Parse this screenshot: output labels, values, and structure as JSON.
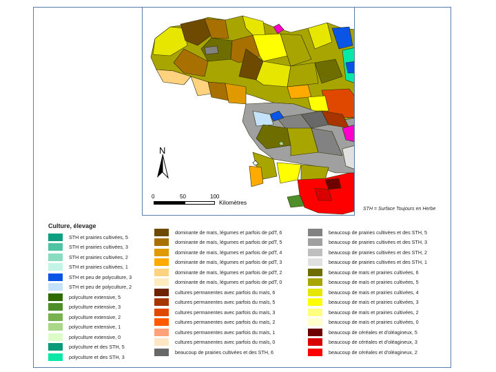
{
  "map": {
    "north_label": "N",
    "scale": {
      "ticks": [
        "0",
        "50",
        "100"
      ],
      "unit": "Kilomètres"
    },
    "note": "STH = Surface Toujours en Herbe"
  },
  "legend": {
    "title": "Culture, élevage",
    "columns": [
      [
        {
          "label": "STH et prairies cultivées, 5",
          "color": "#0e9e80"
        },
        {
          "label": "STH et prairies cultivées, 3",
          "color": "#4fc4a2"
        },
        {
          "label": "STH et prairies cultivées, 2",
          "color": "#8adcc0"
        },
        {
          "label": "STH et prairies cultivées, 1",
          "color": "#c2f5e6"
        },
        {
          "label": "STH et peu de polyculture, 3",
          "color": "#0a55e6"
        },
        {
          "label": "STH et peu de polyculture, 2",
          "color": "#c4e2fa"
        },
        {
          "label": "polyculture extensive, 5",
          "color": "#2c6c00"
        },
        {
          "label": "polyculture extensive, 3",
          "color": "#4f8f2a"
        },
        {
          "label": "polyculture extensive, 2",
          "color": "#78b24e"
        },
        {
          "label": "polyculture extensive, 1",
          "color": "#a8d888"
        },
        {
          "label": "polyculture extensive, 0",
          "color": "#dcfcc8"
        },
        {
          "label": "polyculture et des STH, 5",
          "color": "#0a9a7a"
        },
        {
          "label": "polyculture et des STH, 3",
          "color": "#0ae8a8"
        }
      ],
      [
        {
          "label": "dominante de maïs, légumes et parfois de pdT, 6",
          "color": "#6e4a00"
        },
        {
          "label": "dominante de maïs, légumes et parfois de pdT, 5",
          "color": "#a87000"
        },
        {
          "label": "dominante de maïs, légumes et parfois de pdT, 4",
          "color": "#e09a00"
        },
        {
          "label": "dominante de maïs, légumes et parfois de pdT, 3",
          "color": "#ffaa00"
        },
        {
          "label": "dominante de maïs, légumes et parfois de pdT, 2",
          "color": "#ffd280"
        },
        {
          "label": "dominante de maïs, légumes et parfois de pdT, 0",
          "color": "#ffecbe"
        },
        {
          "label": "cultures permanentes avec parfois du maïs, 6",
          "color": "#6e2200"
        },
        {
          "label": "cultures permanentes avec parfois du maïs, 5",
          "color": "#a83400"
        },
        {
          "label": "cultures permanentes avec parfois du maïs, 3",
          "color": "#e04800"
        },
        {
          "label": "cultures permanentes avec parfois du maïs, 2",
          "color": "#ff5a00"
        },
        {
          "label": "cultures permanentes avec parfois du maïs, 1",
          "color": "#ffa27a"
        },
        {
          "label": "cultures permanentes avec parfois du maïs, 0",
          "color": "#ffe6c4"
        },
        {
          "label": "beaucoup de prairies cultivées et des STH, 6",
          "color": "#686868"
        }
      ],
      [
        {
          "label": "beaucoup de prairies cultivées et des STH, 5",
          "color": "#828282"
        },
        {
          "label": "beaucoup de prairies cultivées et des STH, 3",
          "color": "#a0a0a0"
        },
        {
          "label": "beaucoup de prairies cultivées et des STH, 2",
          "color": "#bebebe"
        },
        {
          "label": "beaucoup de prairies cultivées et des STH, 1",
          "color": "#e0e0e0"
        },
        {
          "label": "beaucoup de maïs et prairies cultivées, 6",
          "color": "#6e6e00"
        },
        {
          "label": "beaucoup de maïs et prairies cultivées, 5",
          "color": "#a8a400"
        },
        {
          "label": "beaucoup de maïs et prairies cultivées, 4",
          "color": "#e6e600"
        },
        {
          "label": "beaucoup de maïs et prairies cultivées, 3",
          "color": "#ffff00"
        },
        {
          "label": "beaucoup de maïs et prairies cultivées, 2",
          "color": "#ffff80"
        },
        {
          "label": "beaucoup de maïs et prairies cultivées, 0",
          "color": "#ffffcc"
        },
        {
          "label": "beaucoup de céréales et d'oléagineux, 5",
          "color": "#6e0000"
        },
        {
          "label": "beaucoup de céréales et d'oléagineux, 3",
          "color": "#d80000"
        },
        {
          "label": "beaucoup de céréales et d'oléagineux, 2",
          "color": "#ff0000"
        }
      ]
    ]
  },
  "colors": {
    "frame": "#5a7aa8"
  }
}
